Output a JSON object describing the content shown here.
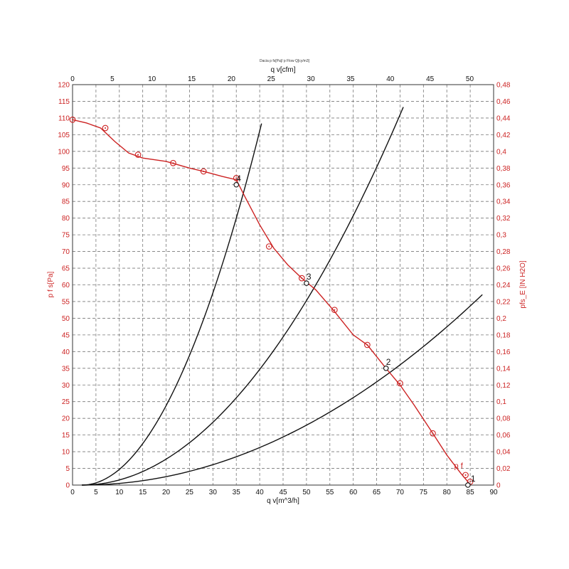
{
  "chart_data": {
    "type": "line",
    "caption": "Dacia p fs[Pa]/ p Flow Q[cy/m3]",
    "xlabel_bottom": "q v[m^3/h]",
    "xlabel_top": "q v[cfm]",
    "ylabel_left": "p f s[Pa]",
    "ylabel_right": "pfs_E [IN H2O]",
    "xlim_bottom": [
      0,
      90
    ],
    "xlim_top": [
      0,
      53
    ],
    "ylim_left": [
      0,
      120
    ],
    "ylim_right": [
      0,
      0.48
    ],
    "grid": true,
    "x_ticks_bottom": [
      "0",
      "5",
      "10",
      "15",
      "20",
      "25",
      "30",
      "35",
      "40",
      "45",
      "50",
      "55",
      "60",
      "65",
      "70",
      "75",
      "80",
      "85",
      "90"
    ],
    "x_ticks_top": [
      "0",
      "5",
      "10",
      "15",
      "20",
      "25",
      "30",
      "35",
      "40",
      "45",
      "50"
    ],
    "y_ticks_left": [
      "0",
      "5",
      "10",
      "15",
      "20",
      "25",
      "30",
      "35",
      "40",
      "45",
      "50",
      "55",
      "60",
      "65",
      "70",
      "75",
      "80",
      "85",
      "90",
      "95",
      "100",
      "105",
      "110",
      "115",
      "120"
    ],
    "y_ticks_right": [
      "0",
      "0,02",
      "0,04",
      "0,06",
      "0,08",
      "0,1",
      "0,12",
      "0,14",
      "0,16",
      "0,18",
      "0,2",
      "0,22",
      "0,24",
      "0,26",
      "0,28",
      "0,3",
      "0,32",
      "0,34",
      "0,36",
      "0,38",
      "0,4",
      "0,42",
      "0,44",
      "0,46",
      "0,48"
    ],
    "fan_curve": {
      "name": "p f",
      "color": "#cc2222",
      "line": [
        [
          0,
          109.5
        ],
        [
          3,
          108.5
        ],
        [
          6,
          107
        ],
        [
          9,
          103
        ],
        [
          12,
          99.5
        ],
        [
          15,
          98
        ],
        [
          20,
          97
        ],
        [
          25,
          95
        ],
        [
          28,
          94
        ],
        [
          32,
          92.5
        ],
        [
          35,
          91.5
        ],
        [
          37,
          86
        ],
        [
          40,
          78
        ],
        [
          43,
          71
        ],
        [
          46,
          66
        ],
        [
          49,
          62
        ],
        [
          52,
          58.5
        ],
        [
          56,
          52
        ],
        [
          60,
          45
        ],
        [
          63,
          42
        ],
        [
          67,
          35
        ],
        [
          70,
          30
        ],
        [
          73,
          24
        ],
        [
          77,
          15.5
        ],
        [
          80,
          9
        ],
        [
          83,
          3.5
        ],
        [
          84.5,
          1
        ],
        [
          85,
          0
        ]
      ],
      "markers": [
        [
          0,
          109.5
        ],
        [
          7,
          107
        ],
        [
          14,
          99
        ],
        [
          21.5,
          96.5
        ],
        [
          28,
          94
        ],
        [
          35,
          92
        ],
        [
          42,
          71.5
        ],
        [
          49,
          62
        ],
        [
          56,
          52.5
        ],
        [
          63,
          42
        ],
        [
          70,
          30.5
        ],
        [
          77,
          15.5
        ],
        [
          84,
          3
        ],
        [
          85,
          1
        ]
      ]
    },
    "system_curves": [
      {
        "k": 0.07347,
        "xmax": 40.4
      },
      {
        "k": 0.024,
        "xmax": 70.7
      },
      {
        "k": 0.00779,
        "xmax": 87.6
      }
    ],
    "operating_points": [
      {
        "label": "1",
        "x": 84.5,
        "y": 0
      },
      {
        "label": "2",
        "x": 67,
        "y": 35
      },
      {
        "label": "3",
        "x": 50,
        "y": 60.5
      },
      {
        "label": "4",
        "x": 35,
        "y": 90
      }
    ]
  }
}
